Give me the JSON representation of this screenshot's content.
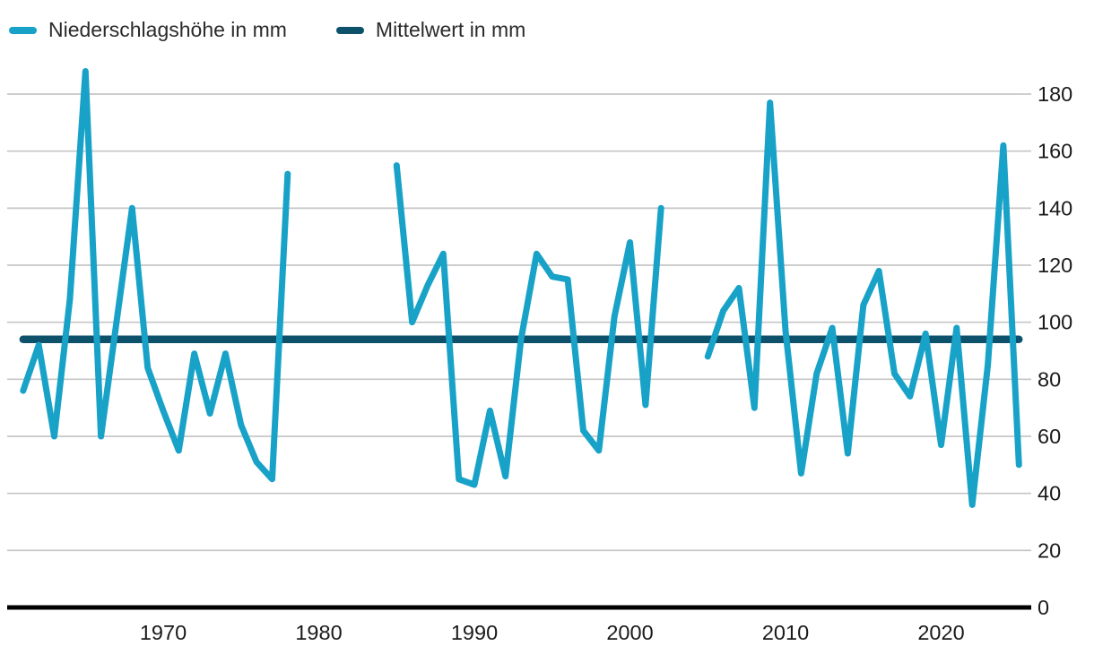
{
  "legend": [
    {
      "label": "Niederschlagshöhe in mm",
      "color": "#18a2c8"
    },
    {
      "label": "Mittelwert in mm",
      "color": "#0d516b"
    }
  ],
  "chart_data": {
    "type": "line",
    "title": "",
    "xlabel": "",
    "ylabel": "",
    "y_axis_side": "right",
    "grid": "horizontal",
    "legend_position": "top-left",
    "x_ticks": [
      1970,
      1980,
      1990,
      2000,
      2010,
      2020
    ],
    "y_ticks": [
      0,
      20,
      40,
      60,
      80,
      100,
      120,
      140,
      160,
      180
    ],
    "ylim": [
      0,
      190
    ],
    "xlim": [
      1960,
      2025.3
    ],
    "gaps": [
      [
        1979,
        1984
      ],
      [
        2003,
        2004
      ]
    ],
    "colors": {
      "series": "#18a2c8",
      "mean": "#0d516b",
      "gridline": "#c6c6c6",
      "axis": "#000000",
      "tick_text": "#1a1a1a"
    },
    "series": [
      {
        "name": "Niederschlagshöhe in mm",
        "color": "#18a2c8",
        "segments": [
          {
            "years": [
              1961,
              1962,
              1963,
              1964,
              1965,
              1966,
              1967,
              1968,
              1969,
              1970,
              1971,
              1972,
              1973,
              1974,
              1975,
              1976,
              1977,
              1978
            ],
            "values": [
              76,
              92,
              60,
              108,
              188,
              60,
              100,
              140,
              84,
              69,
              55,
              89,
              68,
              89,
              64,
              51,
              45,
              152
            ]
          },
          {
            "years": [
              1985,
              1986,
              1987,
              1988,
              1989,
              1990,
              1991,
              1992,
              1993,
              1994,
              1995,
              1996,
              1997,
              1998,
              1999,
              2000,
              2001,
              2002
            ],
            "values": [
              155,
              100,
              113,
              124,
              45,
              43,
              69,
              46,
              94,
              124,
              116,
              115,
              62,
              55,
              102,
              128,
              71,
              140
            ]
          },
          {
            "years": [
              2005,
              2006,
              2007,
              2008,
              2009,
              2010,
              2011,
              2012,
              2013,
              2014,
              2015,
              2016,
              2017,
              2018,
              2019,
              2020,
              2021,
              2022,
              2023,
              2024,
              2025
            ],
            "values": [
              88,
              104,
              112,
              70,
              177,
              97,
              47,
              82,
              98,
              54,
              106,
              118,
              82,
              74,
              96,
              57,
              98,
              36,
              85,
              162,
              50
            ]
          }
        ]
      },
      {
        "name": "Mittelwert in mm",
        "color": "#0d516b",
        "type": "constant",
        "value": 94,
        "x_range": [
          1961,
          2025
        ]
      }
    ]
  }
}
